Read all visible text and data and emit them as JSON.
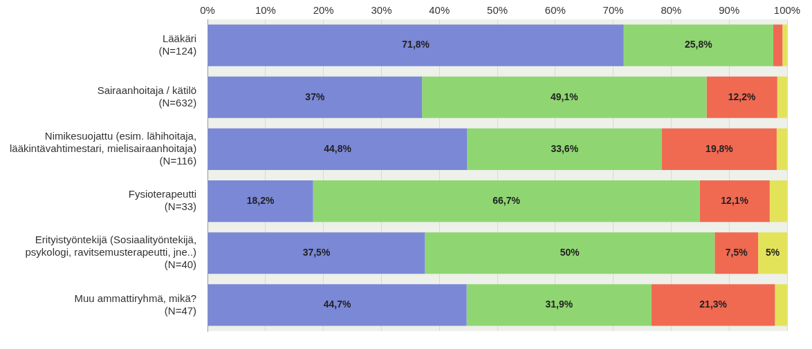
{
  "chart_data": {
    "type": "bar",
    "orientation": "horizontal",
    "stacked": true,
    "categories": [
      "Lääkäri\n(N=124)",
      "Sairaanhoitaja / kätilö\n(N=632)",
      "Nimikesuojattu (esim. lähihoitaja,\nlääkintävahtimestari, mielisairaanhoitaja)\n(N=116)",
      "Fysioterapeutti\n(N=33)",
      "Erityistyöntekijä (Sosiaalityöntekijä,\npsykologi, ravitsemusterapeutti, jne..)\n(N=40)",
      "Muu ammattiryhmä, mikä?\n(N=47)"
    ],
    "series": [
      {
        "color": "#7b88d6",
        "values": [
          71.8,
          37,
          44.8,
          18.2,
          37.5,
          44.7
        ],
        "value_labels": [
          "71,8%",
          "37%",
          "44,8%",
          "18,2%",
          "37,5%",
          "44,7%"
        ]
      },
      {
        "color": "#8fd672",
        "values": [
          25.8,
          49.1,
          33.6,
          66.7,
          50,
          31.9
        ],
        "value_labels": [
          "25,8%",
          "49,1%",
          "33,6%",
          "66,7%",
          "50%",
          "31,9%"
        ]
      },
      {
        "color": "#f06a52",
        "values": [
          1.6,
          12.2,
          19.8,
          12.1,
          7.5,
          21.3
        ],
        "value_labels": [
          null,
          "12,2%",
          "19,8%",
          "12,1%",
          "7,5%",
          "21,3%"
        ]
      },
      {
        "color": "#e3e35a",
        "values": [
          0.8,
          1.7,
          1.8,
          3,
          5,
          2.1
        ],
        "value_labels": [
          null,
          null,
          null,
          null,
          "5%",
          null
        ]
      }
    ],
    "xlim": [
      0,
      100
    ],
    "xticks": [
      {
        "value": 0,
        "label": "0%"
      },
      {
        "value": 10,
        "label": "10%"
      },
      {
        "value": 20,
        "label": "20%"
      },
      {
        "value": 30,
        "label": "30%"
      },
      {
        "value": 40,
        "label": "40%"
      },
      {
        "value": 50,
        "label": "50%"
      },
      {
        "value": 60,
        "label": "60%"
      },
      {
        "value": 70,
        "label": "70%"
      },
      {
        "value": 80,
        "label": "80%"
      },
      {
        "value": 90,
        "label": "90%"
      },
      {
        "value": 100,
        "label": "100%"
      }
    ],
    "grid": true,
    "legend": false
  }
}
